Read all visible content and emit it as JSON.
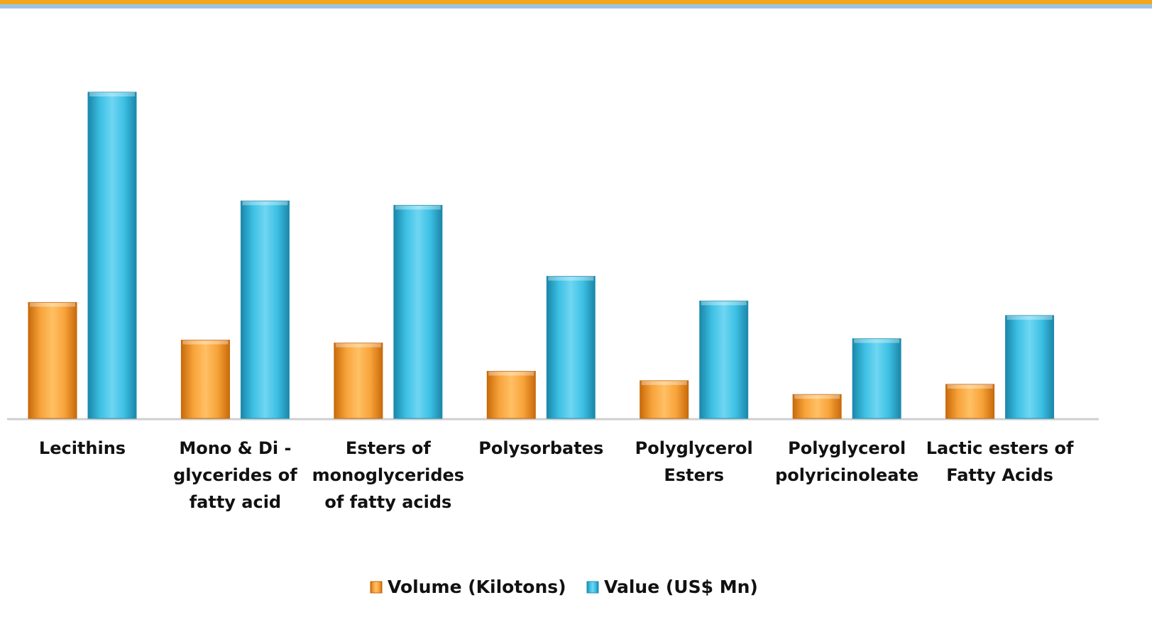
{
  "chart_data": {
    "type": "bar",
    "categories": [
      "Lecithins",
      "Mono & Di - glycerides of fatty acid",
      "Esters of monoglycerides of fatty acids",
      "Polysorbates",
      "Polyglycerol Esters",
      "Polyglycerol polyricinoleate",
      "Lactic esters of Fatty Acids"
    ],
    "category_lines": [
      [
        "Lecithins"
      ],
      [
        "Mono & Di -",
        "glycerides of",
        "fatty acid"
      ],
      [
        "Esters of",
        "monoglycerides",
        "of fatty acids"
      ],
      [
        "Polysorbates"
      ],
      [
        "Polyglycerol",
        "Esters"
      ],
      [
        "Polyglycerol",
        "polyricinoleate"
      ],
      [
        "Lactic esters of",
        "Fatty Acids"
      ]
    ],
    "series": [
      {
        "name": "Volume (Kilotons)",
        "color": "#f28c1c",
        "values": [
          160,
          108,
          104,
          65,
          52,
          33,
          47
        ]
      },
      {
        "name": "Value (US$ Mn)",
        "color": "#31b3d8",
        "values": [
          450,
          300,
          294,
          196,
          162,
          110,
          142
        ]
      }
    ],
    "ylim": [
      0,
      500
    ],
    "title": "",
    "xlabel": "",
    "ylabel": "",
    "grid": false,
    "legend_position": "bottom-center"
  }
}
